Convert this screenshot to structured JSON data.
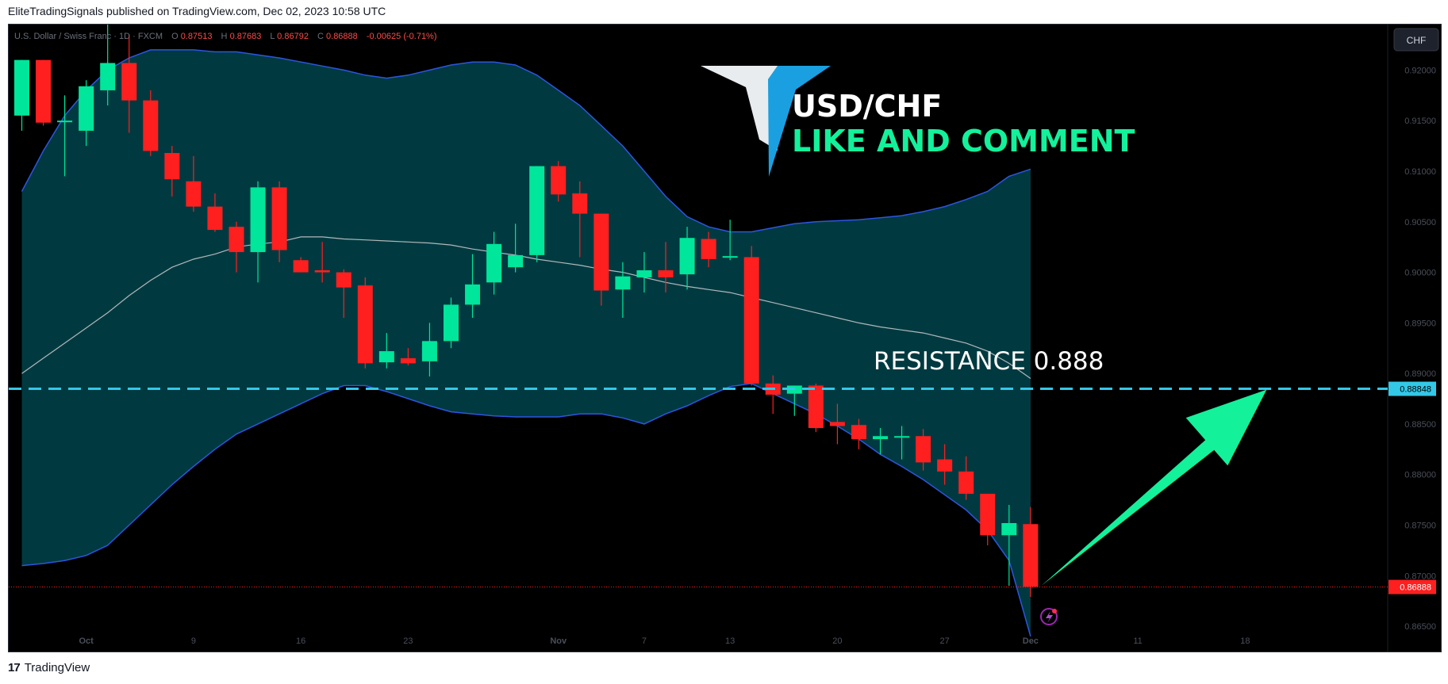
{
  "header": {
    "published_text": "EliteTradingSignals published on TradingView.com, Dec 02, 2023 10:58 UTC"
  },
  "footer": {
    "brand": "TradingView",
    "logo_glyph": "17"
  },
  "legend": {
    "symbol": "U.S. Dollar / Swiss Franc · 1D · FXCM",
    "o_label": "O",
    "o": "0.87513",
    "h_label": "H",
    "h": "0.87683",
    "l_label": "L",
    "l": "0.86792",
    "c_label": "C",
    "c": "0.86888",
    "change": "-0.00625 (-0.71%)"
  },
  "currency_button": "CHF",
  "overlay": {
    "title": "USD/CHF",
    "cta": "LIKE AND COMMENT",
    "resistance_text": "RESISTANCE  0.888"
  },
  "colors": {
    "up": "#00e69a",
    "down": "#ff1f1f",
    "band_fill": "#003a40",
    "band_line": "#2d55e0",
    "basis": "#b0b8bc",
    "resistance": "#33c8e8",
    "arrow": "#13f19a",
    "accent_blue": "#1aa0e0"
  },
  "chart_data": {
    "type": "candlestick",
    "ylim": [
      0.8625,
      0.9245
    ],
    "y_ticks": [
      "0.92000",
      "0.91500",
      "0.91000",
      "0.90500",
      "0.90000",
      "0.89500",
      "0.89000",
      "0.88500",
      "0.88000",
      "0.87500",
      "0.87000",
      "0.86500"
    ],
    "y_tick_values": [
      0.92,
      0.915,
      0.91,
      0.905,
      0.9,
      0.895,
      0.89,
      0.885,
      0.88,
      0.875,
      0.87,
      0.865
    ],
    "x_ticks": [
      {
        "label": "Oct",
        "index": 3,
        "bold": true
      },
      {
        "label": "9",
        "index": 8
      },
      {
        "label": "16",
        "index": 13
      },
      {
        "label": "23",
        "index": 18
      },
      {
        "label": "Nov",
        "index": 25,
        "bold": true
      },
      {
        "label": "7",
        "index": 29
      },
      {
        "label": "13",
        "index": 33
      },
      {
        "label": "20",
        "index": 38
      },
      {
        "label": "27",
        "index": 43
      },
      {
        "label": "Dec",
        "index": 47,
        "bold": true
      },
      {
        "label": "11",
        "index": 52
      },
      {
        "label": "18",
        "index": 57
      }
    ],
    "total_slots": 62,
    "candles": [
      {
        "o": 0.9155,
        "h": 0.921,
        "l": 0.914,
        "c": 0.921
      },
      {
        "o": 0.921,
        "h": 0.921,
        "l": 0.9145,
        "c": 0.9148
      },
      {
        "o": 0.915,
        "h": 0.9175,
        "l": 0.9095,
        "c": 0.915
      },
      {
        "o": 0.914,
        "h": 0.919,
        "l": 0.9125,
        "c": 0.9184
      },
      {
        "o": 0.918,
        "h": 0.9245,
        "l": 0.9165,
        "c": 0.9207
      },
      {
        "o": 0.9207,
        "h": 0.9235,
        "l": 0.9138,
        "c": 0.917
      },
      {
        "o": 0.917,
        "h": 0.918,
        "l": 0.9115,
        "c": 0.912
      },
      {
        "o": 0.9118,
        "h": 0.9125,
        "l": 0.9075,
        "c": 0.9092
      },
      {
        "o": 0.909,
        "h": 0.9115,
        "l": 0.906,
        "c": 0.9065
      },
      {
        "o": 0.9065,
        "h": 0.9078,
        "l": 0.904,
        "c": 0.9042
      },
      {
        "o": 0.9045,
        "h": 0.905,
        "l": 0.9,
        "c": 0.902
      },
      {
        "o": 0.902,
        "h": 0.909,
        "l": 0.899,
        "c": 0.9084
      },
      {
        "o": 0.9084,
        "h": 0.909,
        "l": 0.901,
        "c": 0.9022
      },
      {
        "o": 0.9012,
        "h": 0.9015,
        "l": 0.9,
        "c": 0.9
      },
      {
        "o": 0.9002,
        "h": 0.903,
        "l": 0.899,
        "c": 0.9
      },
      {
        "o": 0.9,
        "h": 0.9003,
        "l": 0.8955,
        "c": 0.8985
      },
      {
        "o": 0.8987,
        "h": 0.8995,
        "l": 0.8905,
        "c": 0.891
      },
      {
        "o": 0.8911,
        "h": 0.894,
        "l": 0.8905,
        "c": 0.8922
      },
      {
        "o": 0.8915,
        "h": 0.8925,
        "l": 0.8908,
        "c": 0.891
      },
      {
        "o": 0.8912,
        "h": 0.895,
        "l": 0.8897,
        "c": 0.8932
      },
      {
        "o": 0.8932,
        "h": 0.8975,
        "l": 0.8925,
        "c": 0.8968
      },
      {
        "o": 0.8968,
        "h": 0.9018,
        "l": 0.8955,
        "c": 0.8988
      },
      {
        "o": 0.899,
        "h": 0.904,
        "l": 0.8978,
        "c": 0.9028
      },
      {
        "o": 0.9005,
        "h": 0.9048,
        "l": 0.9,
        "c": 0.9017
      },
      {
        "o": 0.9017,
        "h": 0.9105,
        "l": 0.901,
        "c": 0.9105
      },
      {
        "o": 0.9105,
        "h": 0.911,
        "l": 0.907,
        "c": 0.9077
      },
      {
        "o": 0.9078,
        "h": 0.909,
        "l": 0.9015,
        "c": 0.9058
      },
      {
        "o": 0.9058,
        "h": 0.9058,
        "l": 0.8967,
        "c": 0.8982
      },
      {
        "o": 0.8983,
        "h": 0.901,
        "l": 0.8955,
        "c": 0.8996
      },
      {
        "o": 0.8995,
        "h": 0.902,
        "l": 0.898,
        "c": 0.9002
      },
      {
        "o": 0.9002,
        "h": 0.903,
        "l": 0.898,
        "c": 0.8995
      },
      {
        "o": 0.8998,
        "h": 0.9045,
        "l": 0.8983,
        "c": 0.9034
      },
      {
        "o": 0.9033,
        "h": 0.904,
        "l": 0.9005,
        "c": 0.9013
      },
      {
        "o": 0.9016,
        "h": 0.9052,
        "l": 0.9012,
        "c": 0.9016
      },
      {
        "o": 0.9015,
        "h": 0.9026,
        "l": 0.8888,
        "c": 0.889
      },
      {
        "o": 0.889,
        "h": 0.8898,
        "l": 0.886,
        "c": 0.8879
      },
      {
        "o": 0.888,
        "h": 0.8888,
        "l": 0.8858,
        "c": 0.8888
      },
      {
        "o": 0.8888,
        "h": 0.889,
        "l": 0.8842,
        "c": 0.8846
      },
      {
        "o": 0.8852,
        "h": 0.887,
        "l": 0.883,
        "c": 0.8848
      },
      {
        "o": 0.8849,
        "h": 0.8855,
        "l": 0.8825,
        "c": 0.8835
      },
      {
        "o": 0.8835,
        "h": 0.8846,
        "l": 0.882,
        "c": 0.8838
      },
      {
        "o": 0.8838,
        "h": 0.8848,
        "l": 0.8815,
        "c": 0.8838
      },
      {
        "o": 0.8838,
        "h": 0.8845,
        "l": 0.8804,
        "c": 0.8812
      },
      {
        "o": 0.8815,
        "h": 0.883,
        "l": 0.879,
        "c": 0.8803
      },
      {
        "o": 0.8803,
        "h": 0.8818,
        "l": 0.8775,
        "c": 0.8781
      },
      {
        "o": 0.8781,
        "h": 0.8781,
        "l": 0.873,
        "c": 0.874
      },
      {
        "o": 0.874,
        "h": 0.877,
        "l": 0.869,
        "c": 0.8752
      },
      {
        "o": 0.8751,
        "h": 0.8768,
        "l": 0.8679,
        "c": 0.8689
      }
    ],
    "bollinger": {
      "upper": [
        0.908,
        0.912,
        0.9155,
        0.918,
        0.92,
        0.9212,
        0.922,
        0.922,
        0.922,
        0.9218,
        0.9218,
        0.9215,
        0.9212,
        0.9208,
        0.9204,
        0.92,
        0.9195,
        0.9192,
        0.9195,
        0.92,
        0.9205,
        0.9208,
        0.9208,
        0.9205,
        0.9195,
        0.918,
        0.9165,
        0.9145,
        0.9125,
        0.91,
        0.9075,
        0.9055,
        0.9045,
        0.904,
        0.904,
        0.9044,
        0.9048,
        0.905,
        0.9051,
        0.9052,
        0.9054,
        0.9056,
        0.906,
        0.9065,
        0.9072,
        0.908,
        0.9095,
        0.9102
      ],
      "basis": [
        0.89,
        0.8915,
        0.893,
        0.8945,
        0.896,
        0.8977,
        0.8992,
        0.9005,
        0.9013,
        0.9018,
        0.9025,
        0.9028,
        0.903,
        0.9035,
        0.9035,
        0.9033,
        0.9032,
        0.9031,
        0.903,
        0.9029,
        0.9027,
        0.9023,
        0.902,
        0.9017,
        0.9013,
        0.901,
        0.9007,
        0.9003,
        0.9,
        0.8995,
        0.899,
        0.8986,
        0.8983,
        0.898,
        0.8975,
        0.897,
        0.8965,
        0.896,
        0.8955,
        0.895,
        0.8946,
        0.8943,
        0.894,
        0.8935,
        0.893,
        0.8922,
        0.891,
        0.8895
      ],
      "lower": [
        0.871,
        0.8712,
        0.8715,
        0.872,
        0.873,
        0.875,
        0.877,
        0.879,
        0.8808,
        0.8825,
        0.884,
        0.885,
        0.886,
        0.887,
        0.888,
        0.8888,
        0.8888,
        0.8882,
        0.8875,
        0.8868,
        0.8862,
        0.886,
        0.8858,
        0.8857,
        0.8857,
        0.8857,
        0.886,
        0.886,
        0.8856,
        0.885,
        0.886,
        0.8868,
        0.8878,
        0.8887,
        0.889,
        0.888,
        0.887,
        0.886,
        0.8848,
        0.8835,
        0.882,
        0.8808,
        0.8795,
        0.878,
        0.8765,
        0.8745,
        0.8715,
        0.864
      ]
    },
    "resistance": {
      "value": 0.88848,
      "label": "0.88848",
      "color": "#33c8e8"
    },
    "last_price": {
      "value": 0.86888,
      "label": "0.86888",
      "color": "#ff1f1f"
    },
    "forecast_arrow": {
      "from_index": 47.5,
      "from_value": 0.869,
      "to_index": 58.0,
      "to_value": 0.8884
    }
  }
}
